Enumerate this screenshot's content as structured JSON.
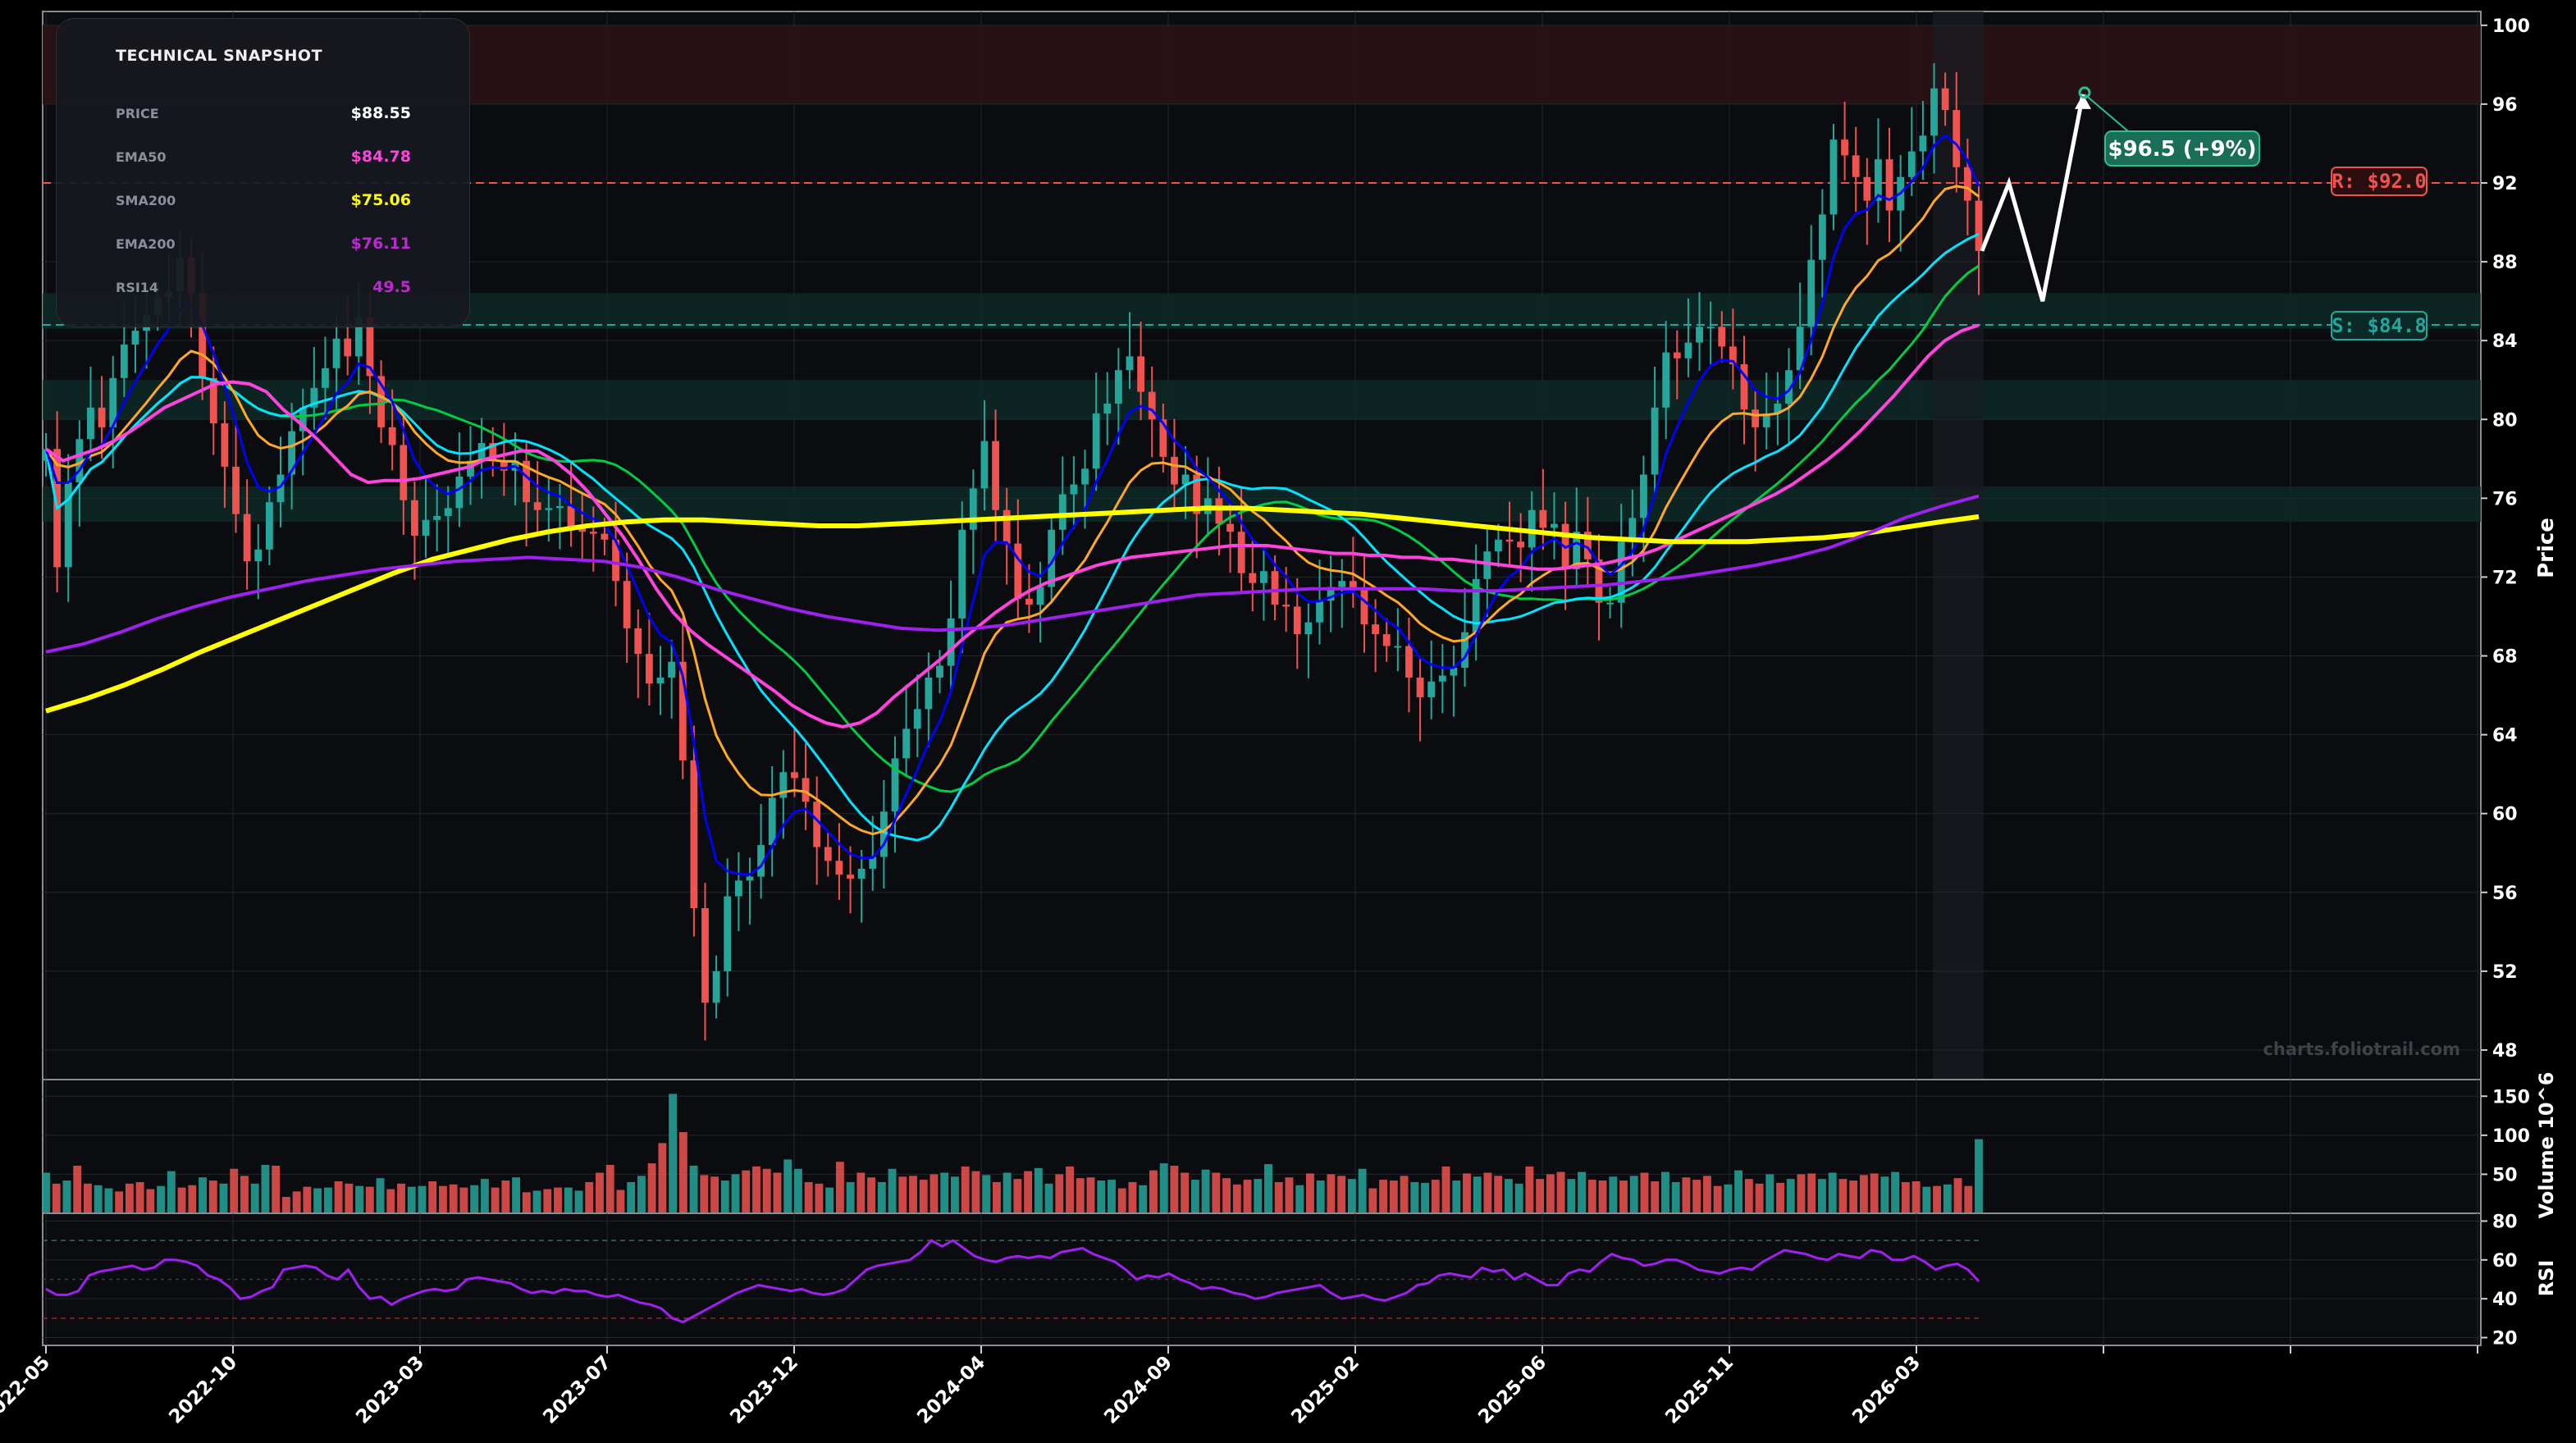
{
  "colors": {
    "background": "#000000",
    "plot_bg": "#0b0c10",
    "up": "#26a69a",
    "down": "#ef5350",
    "ema20": "#0000ff",
    "ema50": "#ff44dd",
    "ema100": "#ffa726",
    "sma50": "#00cc44",
    "ema200": "#a020f0",
    "sma200": "#ffff00",
    "sma100": "#00e5ff",
    "resistance": "#ef5350",
    "support": "#26a69a",
    "rsi": "#a020f0",
    "projection": "#ffffff",
    "target_box": "#1a6e57"
  },
  "snapshot": {
    "title": "TECHNICAL SNAPSHOT",
    "rows": [
      {
        "label": "PRICE",
        "value": "$88.55",
        "color": "#ffffff"
      },
      {
        "label": "EMA50",
        "value": "$84.78",
        "color": "#ff44dd"
      },
      {
        "label": "SMA200",
        "value": "$75.06",
        "color": "#ffff00"
      },
      {
        "label": "EMA200",
        "value": "$76.11",
        "color": "#c026d3"
      },
      {
        "label": "RSI14",
        "value": "49.5",
        "color": "#c026d3"
      }
    ]
  },
  "annotations": {
    "resistance_label": "R: $92.0",
    "support_label": "S: $84.8",
    "target_label": "$96.5 (+9%)",
    "watermark": "charts.foliotrail.com"
  },
  "chart_data": {
    "type": "candlestick",
    "x_ticks": [
      "2022-05",
      "2022-10",
      "2023-03",
      "2023-07",
      "2023-12",
      "2024-04",
      "2024-09",
      "2025-02",
      "2025-06",
      "2025-11",
      "2026-03"
    ],
    "price_panel": {
      "ylabel": "Price",
      "ylim": [
        46.5,
        100.7
      ],
      "yticks": [
        48,
        52,
        56,
        60,
        64,
        68,
        72,
        76,
        80,
        84,
        88,
        92,
        96,
        100
      ],
      "resistance": 92.0,
      "support": 84.8,
      "resistance_zone": [
        96.0,
        100.0
      ],
      "support_zones": [
        [
          84.6,
          86.4
        ],
        [
          80.0,
          82.0
        ],
        [
          74.8,
          76.6
        ]
      ],
      "projection": {
        "points": [
          [
            0,
            88.55
          ],
          [
            4,
            92.0
          ],
          [
            9,
            86.0
          ],
          [
            15,
            96.5
          ]
        ],
        "target": 96.5,
        "change_pct": 9
      },
      "close": [
        78.5,
        72.5,
        76.8,
        79.0,
        80.6,
        79.6,
        82.1,
        83.8,
        84.5,
        85.3,
        86.2,
        86.5,
        88.2,
        86.4,
        82.1,
        79.8,
        77.6,
        75.2,
        72.8,
        73.4,
        75.8,
        77.2,
        79.4,
        80.6,
        81.6,
        82.6,
        84.1,
        83.2,
        85.2,
        82.2,
        79.6,
        78.7,
        75.9,
        74.1,
        74.9,
        75.1,
        75.5,
        77.1,
        77.9,
        78.8,
        77.9,
        77.4,
        77.9,
        75.8,
        75.4,
        75.5,
        75.6,
        74.5,
        74.3,
        74.2,
        73.9,
        71.8,
        69.4,
        68.1,
        66.6,
        66.9,
        67.7,
        62.7,
        55.2,
        50.4,
        52.0,
        55.8,
        56.6,
        56.8,
        58.4,
        60.8,
        62.1,
        61.8,
        60.6,
        58.3,
        57.6,
        56.9,
        56.7,
        57.2,
        57.8,
        60.1,
        62.8,
        64.3,
        65.3,
        66.9,
        67.5,
        69.9,
        74.4,
        76.5,
        78.9,
        75.4,
        73.7,
        70.9,
        70.6,
        71.5,
        74.4,
        76.2,
        76.7,
        77.5,
        80.3,
        80.8,
        82.5,
        83.2,
        81.4,
        80.0,
        78.1,
        76.7,
        77.2,
        75.2,
        76.0,
        74.7,
        74.3,
        72.2,
        71.7,
        72.3,
        70.6,
        70.5,
        69.1,
        69.7,
        70.8,
        71.5,
        71.8,
        71.4,
        69.6,
        69.1,
        68.5,
        68.5,
        66.9,
        65.9,
        66.7,
        67.0,
        67.4,
        69.2,
        71.9,
        73.3,
        73.9,
        73.8,
        73.5,
        75.4,
        74.5,
        74.7,
        72.4,
        74.3,
        72.9,
        70.7,
        70.7,
        73.8,
        75.0,
        77.2,
        80.6,
        83.4,
        83.1,
        83.9,
        84.7,
        84.7,
        83.7,
        82.8,
        80.5,
        79.6,
        80.3,
        80.8,
        82.5,
        84.7,
        88.1,
        90.4,
        94.2,
        93.4,
        92.3,
        91.1,
        93.2,
        90.6,
        92.3,
        93.6,
        94.4,
        96.8,
        95.7,
        92.8,
        91.1,
        88.55
      ]
    },
    "volume_panel": {
      "ylabel": "Volume  10^6",
      "yticks": [
        50,
        100,
        150
      ],
      "ylim": [
        0,
        165
      ],
      "volume": [
        52,
        38,
        42,
        61,
        38,
        36,
        32,
        28,
        38,
        40,
        31,
        35,
        54,
        33,
        36,
        46,
        42,
        38,
        57,
        48,
        38,
        62,
        61,
        21,
        28,
        34,
        32,
        33,
        41,
        38,
        35,
        34,
        45,
        31,
        38,
        34,
        35,
        41,
        35,
        37,
        33,
        36,
        44,
        33,
        42,
        46,
        27,
        29,
        31,
        33,
        33,
        29,
        40,
        52,
        62,
        30,
        40,
        48,
        64,
        90,
        153,
        104,
        61,
        49,
        47,
        42,
        50,
        55,
        60,
        57,
        52,
        69,
        57,
        40,
        38,
        33,
        66,
        40,
        52,
        46,
        40,
        57,
        47,
        48,
        43,
        50,
        52,
        47,
        60,
        54,
        49,
        40,
        52,
        44,
        54,
        58,
        38,
        50,
        60,
        45,
        46,
        42,
        43,
        32,
        40,
        36,
        55,
        64,
        61,
        52,
        43,
        56,
        52,
        45,
        37,
        43,
        44,
        63,
        40,
        46,
        36,
        51,
        42,
        50,
        48,
        44,
        57,
        32,
        43,
        42,
        48,
        40,
        39,
        43,
        60,
        42,
        51,
        47,
        52,
        48,
        44,
        38,
        60,
        44,
        50,
        53,
        44,
        53,
        43,
        42,
        47,
        42,
        48,
        52,
        41,
        53,
        40,
        46,
        43,
        48,
        35,
        37,
        55,
        44,
        38,
        50,
        39,
        44,
        50,
        51,
        44,
        52,
        44,
        42,
        49,
        51,
        47,
        53,
        40,
        41,
        34,
        35,
        37,
        45,
        35,
        95
      ]
    },
    "rsi_panel": {
      "ylabel": "RSI",
      "yticks": [
        20,
        40,
        60,
        80
      ],
      "ylim": [
        16,
        84
      ],
      "overbought": 70,
      "oversold": 30,
      "midline": 50,
      "rsi": [
        45,
        42,
        42,
        44,
        52,
        54,
        55,
        56,
        57,
        55,
        56,
        60,
        60,
        59,
        57,
        52,
        50,
        46,
        40,
        41,
        44,
        46,
        55,
        56,
        57,
        56,
        52,
        50,
        55,
        46,
        40,
        41,
        37,
        40,
        42,
        44,
        45,
        44,
        45,
        50,
        51,
        50,
        49,
        48,
        45,
        43,
        44,
        43,
        45,
        44,
        44,
        42,
        41,
        42,
        40,
        38,
        37,
        35,
        30,
        28,
        31,
        34,
        37,
        40,
        43,
        45,
        47,
        46,
        45,
        44,
        45,
        43,
        42,
        43,
        45,
        50,
        55,
        57,
        58,
        59,
        60,
        64,
        70,
        67,
        70,
        66,
        62,
        60,
        59,
        61,
        62,
        61,
        62,
        61,
        64,
        65,
        66,
        63,
        61,
        59,
        55,
        50,
        52,
        51,
        53,
        50,
        48,
        45,
        46,
        45,
        43,
        42,
        40,
        41,
        43,
        44,
        45,
        46,
        47,
        43,
        40,
        41,
        42,
        40,
        39,
        41,
        43,
        47,
        48,
        52,
        53,
        52,
        51,
        56,
        54,
        55,
        50,
        53,
        50,
        47,
        47,
        53,
        55,
        54,
        59,
        63,
        61,
        60,
        57,
        58,
        60,
        60,
        58,
        55,
        54,
        53,
        55,
        56,
        55,
        59,
        62,
        65,
        64,
        63,
        61,
        60,
        63,
        62,
        61,
        65,
        64,
        60,
        60,
        62,
        59,
        55,
        57,
        58,
        55,
        49
      ]
    },
    "series": [
      {
        "name": "EMA50",
        "color": "#ff44dd",
        "values": [
          78.5,
          77.9,
          78.2,
          78.5,
          78.9,
          79.4,
          80.0,
          80.6,
          81.0,
          81.4,
          81.8,
          81.9,
          81.8,
          81.4,
          80.5,
          79.8,
          79.0,
          78.1,
          77.2,
          76.8,
          76.9,
          76.9,
          77.0,
          77.2,
          77.4,
          77.6,
          78.0,
          78.2,
          78.4,
          78.4,
          77.9,
          77.2,
          76.3,
          75.2,
          74.1,
          72.8,
          71.4,
          70.2,
          69.3,
          68.6,
          68.0,
          67.4,
          66.8,
          66.2,
          65.5,
          65.0,
          64.6,
          64.4,
          64.6,
          65.1,
          65.9,
          66.6,
          67.3,
          68.0,
          68.8,
          69.5,
          70.2,
          70.8,
          71.3,
          71.7,
          72.0,
          72.3,
          72.6,
          72.8,
          73.0,
          73.1,
          73.2,
          73.3,
          73.4,
          73.5,
          73.6,
          73.6,
          73.6,
          73.5,
          73.4,
          73.3,
          73.2,
          73.2,
          73.1,
          73.1,
          73.0,
          73.0,
          72.9,
          72.9,
          72.8,
          72.7,
          72.6,
          72.5,
          72.4,
          72.4,
          72.5,
          72.6,
          72.7,
          72.9,
          73.1,
          73.4,
          73.8,
          74.2,
          74.6,
          75.0,
          75.4,
          75.8,
          76.2,
          76.7,
          77.3,
          77.9,
          78.6,
          79.4,
          80.3,
          81.2,
          82.2,
          83.2,
          84.0,
          84.5,
          84.78
        ]
      },
      {
        "name": "SMA200",
        "color": "#ffff00",
        "values": [
          65.2,
          65.8,
          66.5,
          67.3,
          68.2,
          69.0,
          69.8,
          70.6,
          71.4,
          72.2,
          72.9,
          73.4,
          73.9,
          74.3,
          74.6,
          74.8,
          74.9,
          74.9,
          74.8,
          74.7,
          74.6,
          74.6,
          74.7,
          74.8,
          74.9,
          75.0,
          75.1,
          75.2,
          75.3,
          75.4,
          75.5,
          75.5,
          75.4,
          75.3,
          75.2,
          75.0,
          74.8,
          74.6,
          74.4,
          74.2,
          74.0,
          73.9,
          73.8,
          73.8,
          73.8,
          73.9,
          74.0,
          74.2,
          74.5,
          74.8,
          75.06
        ]
      },
      {
        "name": "EMA200",
        "color": "#a020f0",
        "values": [
          68.2,
          68.6,
          69.2,
          69.9,
          70.5,
          71.0,
          71.4,
          71.8,
          72.1,
          72.4,
          72.6,
          72.8,
          72.9,
          73.0,
          72.9,
          72.8,
          72.5,
          72.0,
          71.4,
          70.9,
          70.4,
          70.0,
          69.7,
          69.4,
          69.3,
          69.4,
          69.6,
          69.9,
          70.2,
          70.5,
          70.8,
          71.1,
          71.2,
          71.3,
          71.4,
          71.4,
          71.4,
          71.4,
          71.3,
          71.3,
          71.4,
          71.5,
          71.6,
          71.8,
          72.0,
          72.3,
          72.6,
          73.0,
          73.5,
          74.2,
          75.0,
          75.6,
          76.11
        ]
      }
    ]
  }
}
